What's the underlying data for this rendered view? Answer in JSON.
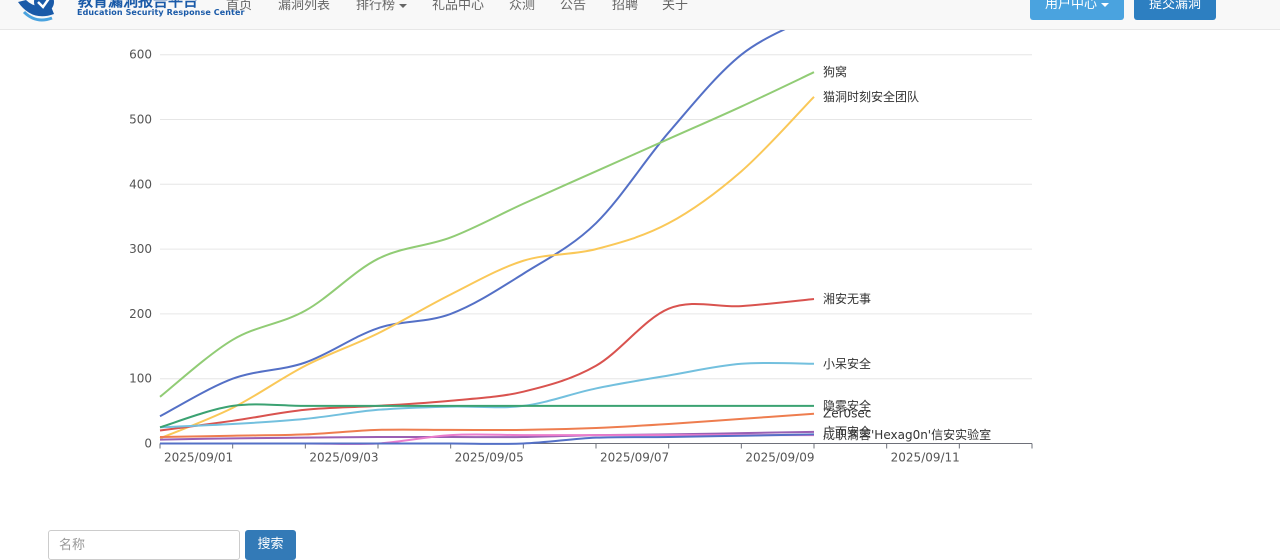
{
  "header": {
    "brand_title": "教育漏洞报告平台",
    "brand_subtitle": "Education Security Response Center",
    "nav": [
      "首页",
      "漏洞列表",
      "排行榜",
      "礼品中心",
      "众测",
      "公告",
      "招聘",
      "关于"
    ],
    "user_center": "用户中心",
    "submit_vuln": "提交漏洞"
  },
  "search": {
    "placeholder": "名称",
    "button": "搜索"
  },
  "chart_data": {
    "type": "line",
    "title": "",
    "xlabel": "",
    "ylabel": "",
    "ylim": [
      0,
      600
    ],
    "yticks": [
      0,
      100,
      200,
      300,
      400,
      500,
      600
    ],
    "x_ticks": [
      "2025/09/01",
      "2025/09/03",
      "2025/09/05",
      "2025/09/07",
      "2025/09/09",
      "2025/09/11"
    ],
    "grid": true,
    "x": [
      "2025/09/01",
      "2025/09/02",
      "2025/09/03",
      "2025/09/04",
      "2025/09/05",
      "2025/09/06",
      "2025/09/07",
      "2025/09/08",
      "2025/09/09",
      "2025/09/10"
    ],
    "series": [
      {
        "name": "",
        "color": "#5470c6",
        "values": [
          42,
          100,
          125,
          178,
          200,
          262,
          340,
          480,
          600,
          660
        ]
      },
      {
        "name": "狗窝",
        "color": "#91cc75",
        "values": [
          72,
          160,
          205,
          285,
          318,
          370,
          420,
          470,
          520,
          573
        ]
      },
      {
        "name": "猫洞时刻安全团队",
        "color": "#fac858",
        "values": [
          8,
          55,
          120,
          170,
          230,
          282,
          300,
          340,
          420,
          535
        ]
      },
      {
        "name": "湘安无事",
        "color": "#d9534f",
        "values": [
          20,
          35,
          52,
          58,
          66,
          80,
          120,
          208,
          212,
          223
        ]
      },
      {
        "name": "小呆安全",
        "color": "#73c0de",
        "values": [
          25,
          30,
          38,
          52,
          57,
          58,
          85,
          105,
          123,
          123
        ]
      },
      {
        "name": "隐雾安全",
        "color": "#3ba272",
        "values": [
          25,
          58,
          58,
          58,
          58,
          58,
          58,
          58,
          58,
          58
        ]
      },
      {
        "name": "Zer0sec",
        "color": "#ee7d4f",
        "values": [
          10,
          12,
          14,
          21,
          21,
          21,
          24,
          30,
          38,
          46
        ]
      },
      {
        "name": "广而安全",
        "color": "#9a60b4",
        "values": [
          6,
          8,
          9,
          10,
          10,
          10,
          13,
          14,
          16,
          18
        ]
      },
      {
        "name": "成职滴蓉'Hexag0n'信安实验室",
        "color": "#ea7ccc",
        "values": [
          0,
          0,
          0,
          0,
          13,
          13,
          13,
          13,
          13,
          13
        ]
      },
      {
        "name": "",
        "color": "#5470c6",
        "values": [
          0,
          0,
          0,
          0,
          0,
          0,
          9,
          10,
          12,
          14
        ]
      }
    ]
  }
}
